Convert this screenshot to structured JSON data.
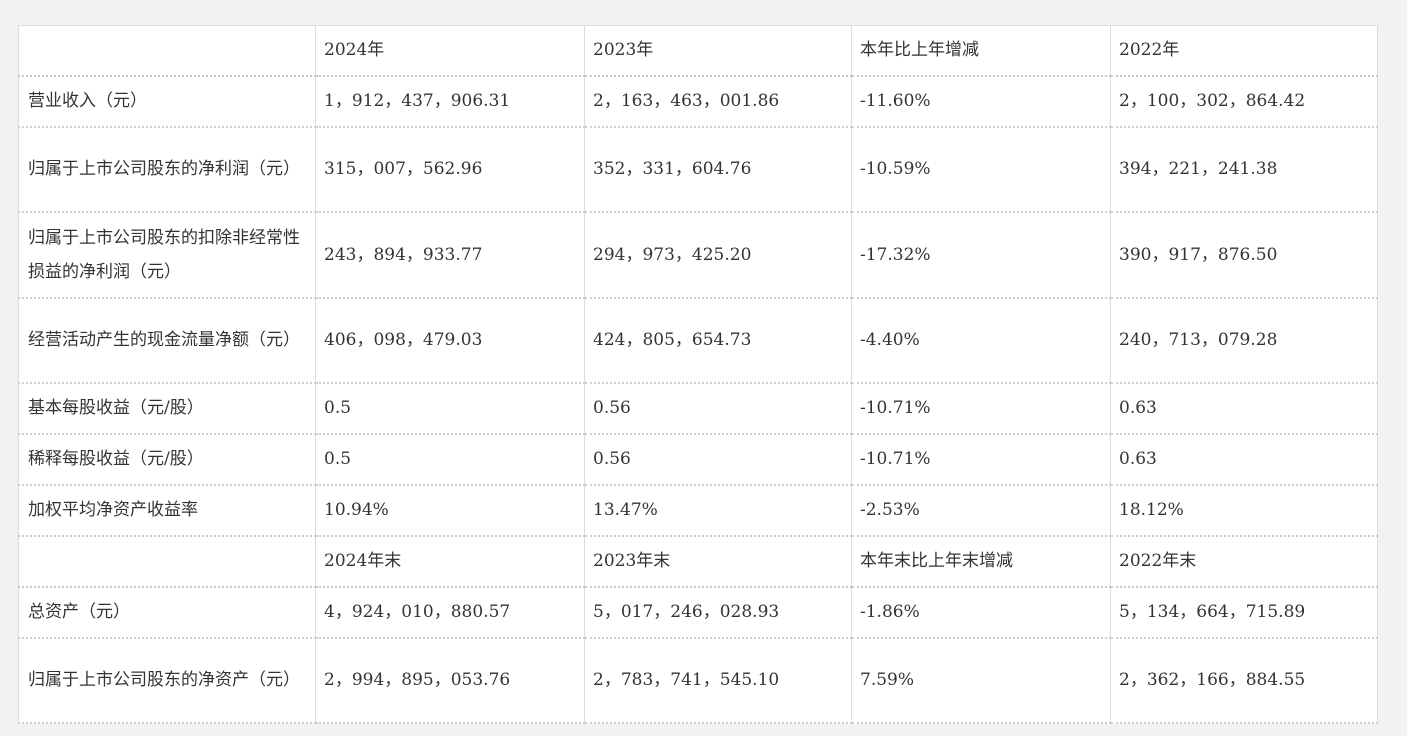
{
  "header1": [
    "",
    "2024年",
    "2023年",
    "本年比上年增减",
    "2022年"
  ],
  "rows1": [
    [
      "营业收入（元）",
      "1，912，437，906.31",
      "2，163，463，001.86",
      "-11.60%",
      "2，100，302，864.42"
    ],
    [
      "归属于上市公司股东的净利润（元）",
      "315，007，562.96",
      "352，331，604.76",
      "-10.59%",
      "394，221，241.38"
    ],
    [
      "归属于上市公司股东的扣除非经常性损益的净利润（元）",
      "243，894，933.77",
      "294，973，425.20",
      "-17.32%",
      "390，917，876.50"
    ],
    [
      "经营活动产生的现金流量净额（元）",
      "406，098，479.03",
      "424，805，654.73",
      "-4.40%",
      "240，713，079.28"
    ],
    [
      "基本每股收益（元/股）",
      "0.5",
      "0.56",
      "-10.71%",
      "0.63"
    ],
    [
      "稀释每股收益（元/股）",
      "0.5",
      "0.56",
      "-10.71%",
      "0.63"
    ],
    [
      "加权平均净资产收益率",
      "10.94%",
      "13.47%",
      "-2.53%",
      "18.12%"
    ]
  ],
  "header2": [
    "",
    "2024年末",
    "2023年末",
    "本年末比上年末增减",
    "2022年末"
  ],
  "rows2": [
    [
      "总资产（元）",
      "4，924，010，880.57",
      "5，017，246，028.93",
      "-1.86%",
      "5，134，664，715.89"
    ],
    [
      "归属于上市公司股东的净资产（元）",
      "2，994，895，053.76",
      "2，783，741，545.10",
      "7.59%",
      "2，362，166，884.55"
    ]
  ]
}
